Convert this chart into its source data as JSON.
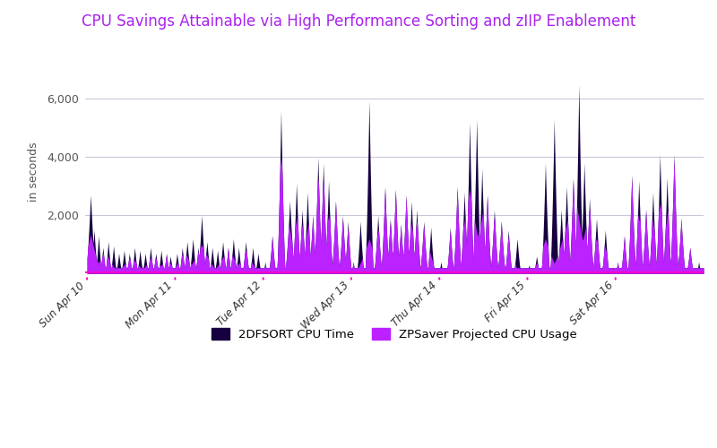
{
  "title": "CPU Savings Attainable via High Performance Sorting and zIIP Enablement",
  "title_color": "#aa22ee",
  "ylabel": "in seconds",
  "ylabel_color": "#555555",
  "background_color": "#ffffff",
  "plot_bg_color": "#ffffff",
  "grid_color": "#c8c8dc",
  "ylim": [
    0,
    7000
  ],
  "yticks": [
    0,
    2000,
    4000,
    6000
  ],
  "xtick_labels": [
    "Sun Apr 10",
    "Mon Apr 11",
    "Tue Apr 12",
    "Wed Apr 13",
    "Thu Apr 14",
    "Fri Apr 15",
    "Sat Apr 16"
  ],
  "color_dark": "#160040",
  "color_bright": "#bb22ff",
  "color_baseline": "#ff00cc",
  "legend_dark_label": "2DFSORT CPU Time",
  "legend_bright_label": "ZPSaver Projected CPU Usage",
  "n_points": 1400,
  "seed": 42
}
